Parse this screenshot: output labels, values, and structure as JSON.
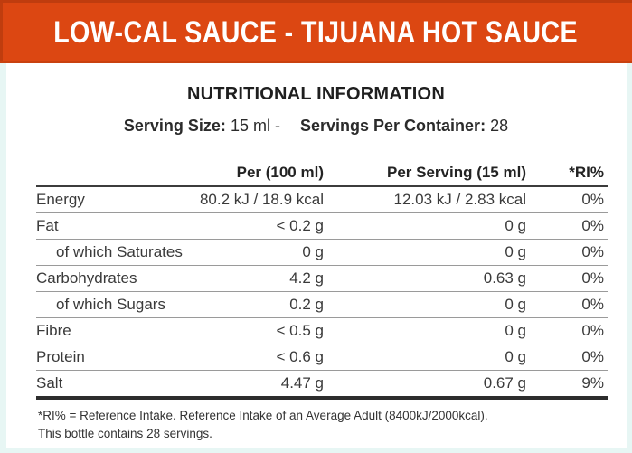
{
  "banner": {
    "title": "LOW-CAL SAUCE - TIJUANA HOT SAUCE"
  },
  "colors": {
    "banner_bg": "#DC4712",
    "banner_text": "#FFFFFF",
    "body_text": "#3A3A3A",
    "thin_rule": "#9A9A9A",
    "thick_rule": "#2D2D2D",
    "edge_tint": "#E7F6F4"
  },
  "section_title": "NUTRITIONAL INFORMATION",
  "serving_line": {
    "size_label": "Serving Size:",
    "size_value": "15 ml -",
    "container_label": "Servings Per Container:",
    "container_value": "28"
  },
  "table": {
    "col_headers": {
      "per100": "Per (100 ml)",
      "per_serving": "Per Serving (15 ml)",
      "ri": "*RI%"
    },
    "rows": [
      {
        "label": "Energy",
        "indent": false,
        "per100": "80.2 kJ / 18.9 kcal",
        "per_serving": "12.03 kJ / 2.83 kcal",
        "ri": "0%"
      },
      {
        "label": "Fat",
        "indent": false,
        "per100": "< 0.2 g",
        "per_serving": "0 g",
        "ri": "0%"
      },
      {
        "label": "of which Saturates",
        "indent": true,
        "per100": "0 g",
        "per_serving": "0 g",
        "ri": "0%"
      },
      {
        "label": "Carbohydrates",
        "indent": false,
        "per100": "4.2 g",
        "per_serving": "0.63 g",
        "ri": "0%"
      },
      {
        "label": "of which Sugars",
        "indent": true,
        "per100": "0.2 g",
        "per_serving": "0 g",
        "ri": "0%"
      },
      {
        "label": "Fibre",
        "indent": false,
        "per100": "< 0.5 g",
        "per_serving": "0 g",
        "ri": "0%"
      },
      {
        "label": "Protein",
        "indent": false,
        "per100": "< 0.6 g",
        "per_serving": "0 g",
        "ri": "0%"
      },
      {
        "label": "Salt",
        "indent": false,
        "per100": "4.47 g",
        "per_serving": "0.67 g",
        "ri": "9%"
      }
    ]
  },
  "footnotes": [
    "*RI% = Reference Intake. Reference Intake of an Average Adult (8400kJ/2000kcal).",
    "This bottle contains 28 servings."
  ]
}
